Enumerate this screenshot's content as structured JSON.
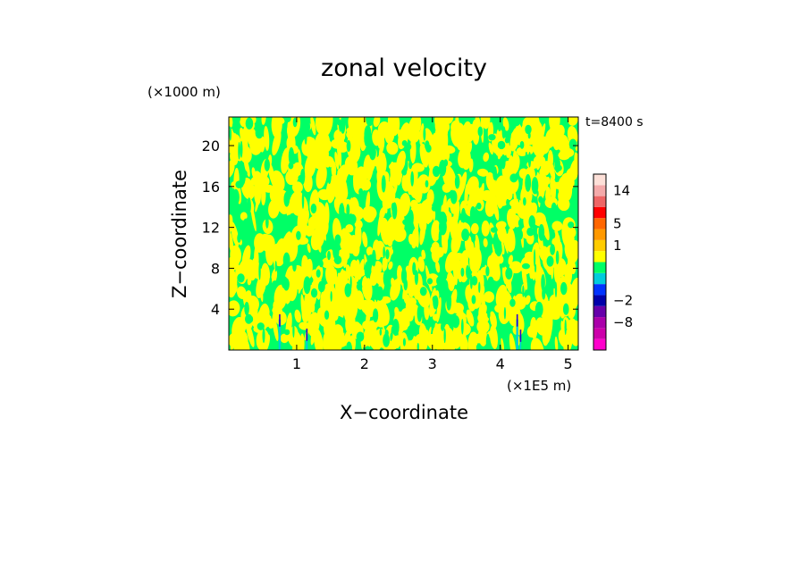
{
  "chart_data": {
    "type": "heatmap",
    "title": "zonal velocity",
    "xlabel": "X−coordinate",
    "ylabel": "Z−coordinate",
    "x_units": "(×1E5 m)",
    "y_units": "(×1000 m)",
    "time_label": "t=8400 s",
    "xlim": [
      0,
      5.15
    ],
    "ylim": [
      0,
      22.8
    ],
    "x_ticks": [
      1,
      2,
      3,
      4,
      5
    ],
    "x_tick_labels": [
      "1",
      "2",
      "3",
      "4",
      "5"
    ],
    "y_ticks": [
      4,
      8,
      12,
      16,
      20
    ],
    "y_tick_labels": [
      "4",
      "8",
      "12",
      "16",
      "20"
    ],
    "field_description": "mostly alternating small-scale regions of near-zero positive (yellow) and near-zero negative (green) values; small negative patches near x≈0.75 and x≈4.25 at low levels",
    "colorbar": {
      "levels": [
        -14,
        -11,
        -8,
        -5,
        -2,
        -1,
        -0.5,
        0,
        0.5,
        1,
        2,
        5,
        8,
        11,
        14,
        17
      ],
      "colors": [
        "#ff00cc",
        "#cc00aa",
        "#aa00aa",
        "#6600aa",
        "#0000aa",
        "#0033ff",
        "#00ccdd",
        "#00ff66",
        "#ffff00",
        "#ffcc00",
        "#ff9900",
        "#ff6600",
        "#ff0000",
        "#ee6666",
        "#f4aaaa",
        "#fde0d8"
      ],
      "tick_labels": [
        "14",
        "5",
        "1",
        "−2",
        "−8"
      ],
      "tick_values": [
        14,
        5,
        1,
        -2,
        -8
      ]
    }
  }
}
